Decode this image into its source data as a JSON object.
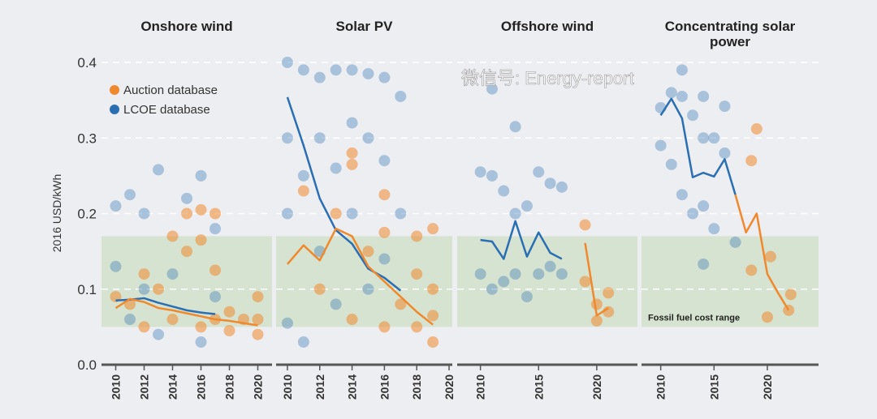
{
  "chart_data": [
    {
      "type": "scatter",
      "title": "Onshore wind",
      "ylabel": "2016 USD/kWh",
      "ylim": [
        0,
        0.4
      ],
      "yticks": [
        "0.0",
        "0.1",
        "0.2",
        "0.3",
        "0.4"
      ],
      "xlim": [
        2009,
        2021
      ],
      "xticks": [
        "2010",
        "2012",
        "2014",
        "2016",
        "2018",
        "2020"
      ],
      "fossil_fuel_range": [
        0.05,
        0.17
      ],
      "series": [
        {
          "name": "Auction database",
          "color": "#f0892e",
          "line": [
            [
              2010,
              0.075
            ],
            [
              2011,
              0.087
            ],
            [
              2012,
              0.083
            ],
            [
              2013,
              0.075
            ],
            [
              2014,
              0.072
            ],
            [
              2015,
              0.068
            ],
            [
              2016,
              0.064
            ],
            [
              2017,
              0.06
            ],
            [
              2018,
              0.058
            ],
            [
              2019,
              0.055
            ],
            [
              2020,
              0.052
            ]
          ],
          "points": [
            [
              2010,
              0.09
            ],
            [
              2011,
              0.08
            ],
            [
              2012,
              0.12
            ],
            [
              2012,
              0.05
            ],
            [
              2013,
              0.1
            ],
            [
              2014,
              0.17
            ],
            [
              2014,
              0.06
            ],
            [
              2015,
              0.15
            ],
            [
              2015,
              0.2
            ],
            [
              2016,
              0.205
            ],
            [
              2016,
              0.165
            ],
            [
              2016,
              0.05
            ],
            [
              2017,
              0.2
            ],
            [
              2017,
              0.125
            ],
            [
              2017,
              0.06
            ],
            [
              2018,
              0.07
            ],
            [
              2018,
              0.045
            ],
            [
              2019,
              0.06
            ],
            [
              2020,
              0.09
            ],
            [
              2020,
              0.06
            ],
            [
              2020,
              0.04
            ]
          ]
        },
        {
          "name": "LCOE database",
          "color": "#2a6fb3",
          "line": [
            [
              2010,
              0.085
            ],
            [
              2011,
              0.086
            ],
            [
              2012,
              0.088
            ],
            [
              2013,
              0.082
            ],
            [
              2014,
              0.077
            ],
            [
              2015,
              0.072
            ],
            [
              2016,
              0.069
            ],
            [
              2017,
              0.067
            ]
          ],
          "points": [
            [
              2010,
              0.21
            ],
            [
              2010,
              0.13
            ],
            [
              2011,
              0.225
            ],
            [
              2011,
              0.06
            ],
            [
              2012,
              0.2
            ],
            [
              2012,
              0.1
            ],
            [
              2013,
              0.258
            ],
            [
              2013,
              0.04
            ],
            [
              2014,
              0.12
            ],
            [
              2015,
              0.22
            ],
            [
              2016,
              0.25
            ],
            [
              2016,
              0.03
            ],
            [
              2017,
              0.18
            ],
            [
              2017,
              0.09
            ]
          ]
        }
      ]
    },
    {
      "type": "scatter",
      "title": "Solar PV",
      "ylim": [
        0,
        0.4
      ],
      "xlim": [
        2009.3,
        2020.2
      ],
      "xticks": [
        "2010",
        "2012",
        "2014",
        "2016",
        "2018",
        "2020"
      ],
      "fossil_fuel_range": [
        0.05,
        0.17
      ],
      "series": [
        {
          "name": "Auction database",
          "color": "#f0892e",
          "line": [
            [
              2010,
              0.133
            ],
            [
              2011,
              0.158
            ],
            [
              2012,
              0.138
            ],
            [
              2013,
              0.18
            ],
            [
              2014,
              0.17
            ],
            [
              2015,
              0.13
            ],
            [
              2016,
              0.11
            ],
            [
              2017,
              0.09
            ],
            [
              2018,
              0.07
            ],
            [
              2019,
              0.053
            ]
          ],
          "points": [
            [
              2011,
              0.23
            ],
            [
              2012,
              0.1
            ],
            [
              2013,
              0.2
            ],
            [
              2014,
              0.28
            ],
            [
              2014,
              0.265
            ],
            [
              2014,
              0.06
            ],
            [
              2015,
              0.15
            ],
            [
              2016,
              0.225
            ],
            [
              2016,
              0.175
            ],
            [
              2016,
              0.05
            ],
            [
              2017,
              0.08
            ],
            [
              2018,
              0.17
            ],
            [
              2018,
              0.12
            ],
            [
              2018,
              0.05
            ],
            [
              2019,
              0.18
            ],
            [
              2019,
              0.1
            ],
            [
              2019,
              0.065
            ],
            [
              2019,
              0.03
            ]
          ]
        },
        {
          "name": "LCOE database",
          "color": "#2a6fb3",
          "line": [
            [
              2010,
              0.354
            ],
            [
              2011,
              0.29
            ],
            [
              2012,
              0.22
            ],
            [
              2013,
              0.178
            ],
            [
              2014,
              0.16
            ],
            [
              2015,
              0.127
            ],
            [
              2016,
              0.115
            ],
            [
              2017,
              0.098
            ]
          ],
          "points": [
            [
              2010,
              0.4
            ],
            [
              2010,
              0.3
            ],
            [
              2010,
              0.2
            ],
            [
              2010,
              0.055
            ],
            [
              2011,
              0.39
            ],
            [
              2011,
              0.25
            ],
            [
              2011,
              0.03
            ],
            [
              2012,
              0.38
            ],
            [
              2012,
              0.3
            ],
            [
              2012,
              0.15
            ],
            [
              2013,
              0.39
            ],
            [
              2013,
              0.26
            ],
            [
              2013,
              0.08
            ],
            [
              2014,
              0.39
            ],
            [
              2014,
              0.32
            ],
            [
              2014,
              0.2
            ],
            [
              2015,
              0.385
            ],
            [
              2015,
              0.3
            ],
            [
              2015,
              0.1
            ],
            [
              2016,
              0.38
            ],
            [
              2016,
              0.27
            ],
            [
              2016,
              0.14
            ],
            [
              2017,
              0.355
            ],
            [
              2017,
              0.2
            ]
          ]
        }
      ]
    },
    {
      "type": "scatter",
      "title": "Offshore wind",
      "ylim": [
        0,
        0.4
      ],
      "xlim": [
        2008,
        2023.5
      ],
      "xticks": [
        "2010",
        "2015",
        "2020"
      ],
      "fossil_fuel_range": [
        0.05,
        0.17
      ],
      "series": [
        {
          "name": "Auction database",
          "color": "#f0892e",
          "line": [
            [
              2019,
              0.161
            ],
            [
              2020,
              0.065
            ],
            [
              2021,
              0.075
            ]
          ],
          "points": [
            [
              2019,
              0.185
            ],
            [
              2019,
              0.11
            ],
            [
              2020,
              0.08
            ],
            [
              2020,
              0.058
            ],
            [
              2021,
              0.095
            ],
            [
              2021,
              0.07
            ]
          ]
        },
        {
          "name": "LCOE database",
          "color": "#2a6fb3",
          "line": [
            [
              2010,
              0.165
            ],
            [
              2011,
              0.163
            ],
            [
              2012,
              0.14
            ],
            [
              2013,
              0.19
            ],
            [
              2014,
              0.143
            ],
            [
              2015,
              0.175
            ],
            [
              2016,
              0.148
            ],
            [
              2017,
              0.14
            ]
          ],
          "points": [
            [
              2010,
              0.255
            ],
            [
              2010,
              0.12
            ],
            [
              2011,
              0.365
            ],
            [
              2011,
              0.25
            ],
            [
              2011,
              0.1
            ],
            [
              2012,
              0.23
            ],
            [
              2012,
              0.11
            ],
            [
              2013,
              0.315
            ],
            [
              2013,
              0.2
            ],
            [
              2013,
              0.12
            ],
            [
              2014,
              0.21
            ],
            [
              2014,
              0.09
            ],
            [
              2015,
              0.255
            ],
            [
              2015,
              0.12
            ],
            [
              2016,
              0.24
            ],
            [
              2016,
              0.13
            ],
            [
              2017,
              0.235
            ],
            [
              2017,
              0.12
            ]
          ]
        }
      ]
    },
    {
      "type": "scatter",
      "title": "Concentrating solar power",
      "ylim": [
        0,
        0.4
      ],
      "xlim": [
        2008.2,
        2024.8
      ],
      "xticks": [
        "2010",
        "2015",
        "2020"
      ],
      "fossil_fuel_range": [
        0.05,
        0.17
      ],
      "fossil_label": "Fossil fuel cost range",
      "series": [
        {
          "name": "Auction database",
          "color": "#f0892e",
          "line": [
            [
              2017,
              0.225
            ],
            [
              2018,
              0.175
            ],
            [
              2019,
              0.2
            ],
            [
              2020,
              0.12
            ],
            [
              2021,
              0.095
            ],
            [
              2022,
              0.072
            ]
          ],
          "points": [
            [
              2019,
              0.312
            ],
            [
              2018.5,
              0.27
            ],
            [
              2018.5,
              0.125
            ],
            [
              2020,
              0.063
            ],
            [
              2020.3,
              0.143
            ],
            [
              2022,
              0.072
            ],
            [
              2022.2,
              0.093
            ]
          ]
        },
        {
          "name": "LCOE database",
          "color": "#2a6fb3",
          "line": [
            [
              2010,
              0.33
            ],
            [
              2011,
              0.352
            ],
            [
              2012,
              0.326
            ],
            [
              2013,
              0.248
            ],
            [
              2014,
              0.254
            ],
            [
              2015,
              0.249
            ],
            [
              2016,
              0.272
            ],
            [
              2017,
              0.225
            ]
          ],
          "points": [
            [
              2010,
              0.34
            ],
            [
              2010,
              0.29
            ],
            [
              2011,
              0.36
            ],
            [
              2011,
              0.265
            ],
            [
              2012,
              0.39
            ],
            [
              2012,
              0.355
            ],
            [
              2012,
              0.225
            ],
            [
              2013,
              0.33
            ],
            [
              2013,
              0.2
            ],
            [
              2014,
              0.355
            ],
            [
              2014,
              0.3
            ],
            [
              2014,
              0.21
            ],
            [
              2014,
              0.133
            ],
            [
              2015,
              0.3
            ],
            [
              2015,
              0.18
            ],
            [
              2016,
              0.342
            ],
            [
              2016,
              0.28
            ],
            [
              2017,
              0.162
            ]
          ]
        }
      ]
    }
  ],
  "legend": [
    {
      "label": "Auction database",
      "color": "#f0892e"
    },
    {
      "label": "LCOE database",
      "color": "#2a6fb3"
    }
  ],
  "watermark": "微信号: Energy-report"
}
